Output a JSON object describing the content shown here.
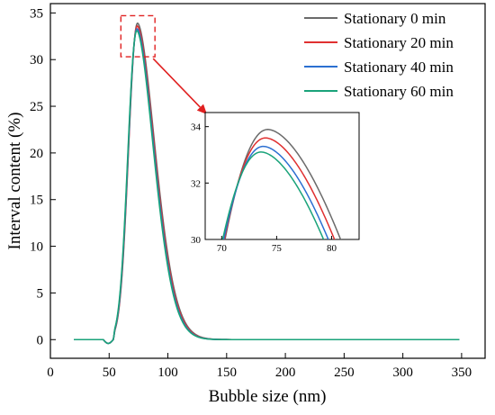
{
  "chart_data": {
    "type": "line",
    "xlabel": "Bubble size (nm)",
    "ylabel": "Interval content (%)",
    "xlim": [
      0,
      370
    ],
    "ylim": [
      -2,
      36
    ],
    "xticks": [
      0,
      50,
      100,
      150,
      200,
      250,
      300,
      350
    ],
    "yticks": [
      0,
      5,
      10,
      15,
      20,
      25,
      30,
      35
    ],
    "grid": false,
    "legend_position": "top-right",
    "x_start": 20,
    "x_end": 348,
    "series": [
      {
        "name": "Stationary 0 min",
        "color": "#6b6b6b",
        "peak_x": 74.2,
        "peak_y": 33.9,
        "rise_start": 53.5,
        "tail_end": 165
      },
      {
        "name": "Stationary 20 min",
        "color": "#e03030",
        "peak_x": 74.0,
        "peak_y": 33.6,
        "rise_start": 53.5,
        "tail_end": 163
      },
      {
        "name": "Stationary 40 min",
        "color": "#2b6fd1",
        "peak_x": 73.8,
        "peak_y": 33.3,
        "rise_start": 53.5,
        "tail_end": 161
      },
      {
        "name": "Stationary 60 min",
        "color": "#1aa37a",
        "peak_x": 73.6,
        "peak_y": 33.1,
        "rise_start": 53.5,
        "tail_end": 160
      }
    ],
    "baseline_dip": {
      "x_start": 45,
      "x_end": 53.5,
      "min_y": -0.4
    },
    "inset": {
      "xlim": [
        68.5,
        82.5
      ],
      "ylim": [
        30,
        34.5
      ],
      "xticks": [
        70,
        75,
        80
      ],
      "yticks": [
        30,
        32,
        34
      ],
      "source_region": {
        "x": [
          60,
          89
        ],
        "y": [
          30.3,
          34.7
        ]
      }
    }
  }
}
